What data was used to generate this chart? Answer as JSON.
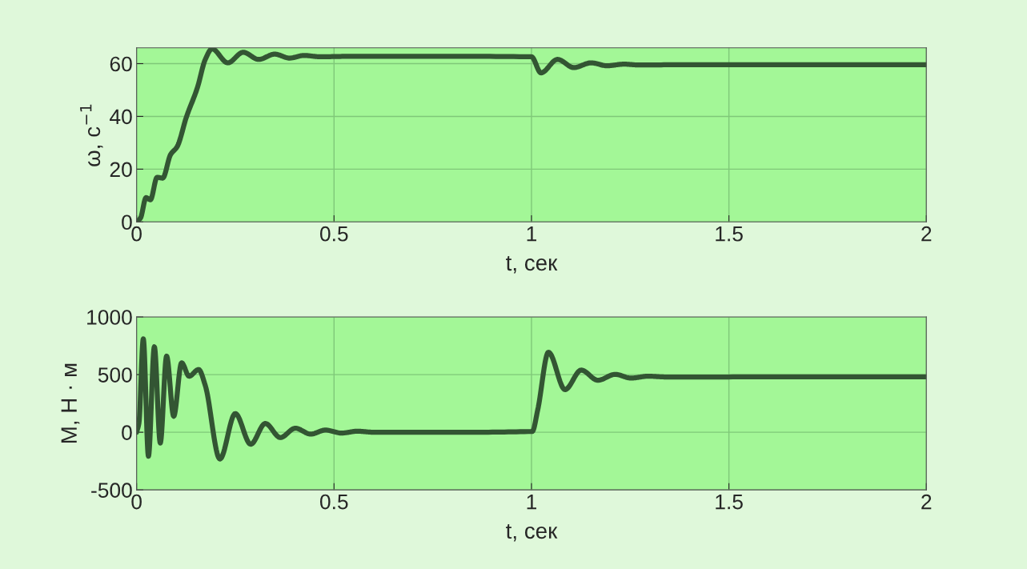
{
  "chart_data": [
    {
      "type": "line",
      "xlabel": "t, сек",
      "ylabel": "ω, с$^{−1}$",
      "xlim": [
        0,
        2
      ],
      "xticks": [
        0,
        0.5,
        1,
        1.5,
        2
      ],
      "ylim": [
        0,
        66
      ],
      "yticks": [
        0,
        20,
        40,
        60
      ],
      "grid": true,
      "series": [
        {
          "color": "#335533",
          "x": [
            0,
            0.01,
            0.024,
            0.035,
            0.052,
            0.066,
            0.086,
            0.103,
            0.126,
            0.154,
            0.174,
            0.191,
            0.231,
            0.27,
            0.309,
            0.35,
            0.387,
            0.424,
            0.465,
            0.55,
            0.7,
            1.0,
            1.024,
            1.066,
            1.107,
            1.151,
            1.191,
            1.235,
            1.27,
            1.4,
            1.7,
            2.0
          ],
          "values": [
            0,
            1.5,
            9.2,
            8.4,
            16.9,
            16.6,
            25.5,
            28.6,
            39.7,
            50.9,
            61.6,
            65.6,
            60.3,
            64.3,
            61.6,
            63.6,
            62.1,
            63.1,
            62.6,
            62.8,
            62.8,
            62.6,
            56.5,
            61.6,
            58.5,
            60.3,
            59.2,
            59.8,
            59.5,
            59.6,
            59.6,
            59.6
          ]
        }
      ]
    },
    {
      "type": "line",
      "xlabel": "t, сек",
      "ylabel": "М, Н · м",
      "xlim": [
        0,
        2
      ],
      "xticks": [
        0,
        0.5,
        1,
        1.5,
        2
      ],
      "ylim": [
        -500,
        1000
      ],
      "yticks": [
        -500,
        0,
        500,
        1000
      ],
      "grid": true,
      "series": [
        {
          "color": "#335533",
          "x": [
            0,
            0.006,
            0.017,
            0.03,
            0.045,
            0.06,
            0.076,
            0.094,
            0.114,
            0.133,
            0.157,
            0.174,
            0.211,
            0.25,
            0.289,
            0.326,
            0.364,
            0.402,
            0.441,
            0.478,
            0.519,
            0.559,
            0.6,
            0.8,
            1.002,
            1.016,
            1.043,
            1.085,
            1.126,
            1.168,
            1.212,
            1.252,
            1.296,
            1.343,
            1.6,
            2.0
          ],
          "values": [
            0,
            81,
            810,
            -208,
            741,
            -93,
            660,
            139,
            602,
            486,
            544,
            405,
            -232,
            162,
            -104,
            76,
            -46,
            35,
            -16,
            19,
            -7,
            9,
            0,
            0,
            7,
            197,
            694,
            370,
            539,
            451,
            502,
            470,
            486,
            479,
            480,
            480
          ]
        }
      ]
    }
  ]
}
